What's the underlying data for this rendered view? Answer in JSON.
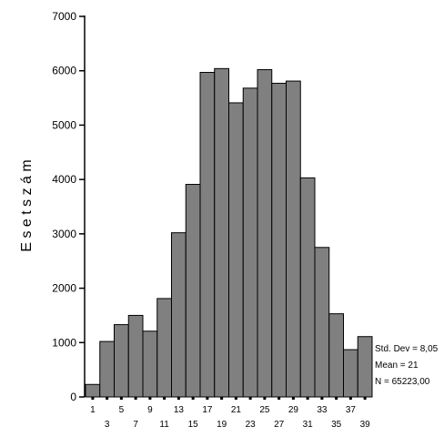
{
  "chart_data": {
    "type": "bar",
    "ylabel": "E s e t s z á m",
    "ylim": [
      0,
      7000
    ],
    "y_ticks": [
      "0",
      "1000",
      "2000",
      "3000",
      "4000",
      "5000",
      "6000",
      "7000"
    ],
    "bin_labels": [
      "1",
      "3",
      "5",
      "7",
      "9",
      "11",
      "13",
      "15",
      "17",
      "19",
      "21",
      "23",
      "25",
      "27",
      "29",
      "31",
      "33",
      "35",
      "37",
      "39"
    ],
    "values": [
      230,
      1020,
      1330,
      1500,
      1210,
      1810,
      3020,
      3910,
      5970,
      6040,
      5410,
      5680,
      6020,
      5770,
      5810,
      4030,
      2750,
      1530,
      870,
      1110
    ],
    "stats": [
      "Std. Dev = 8,05",
      "Mean = 21",
      "N = 65223,00"
    ],
    "bar_color": "#808080",
    "grid": false,
    "legend": "none"
  }
}
